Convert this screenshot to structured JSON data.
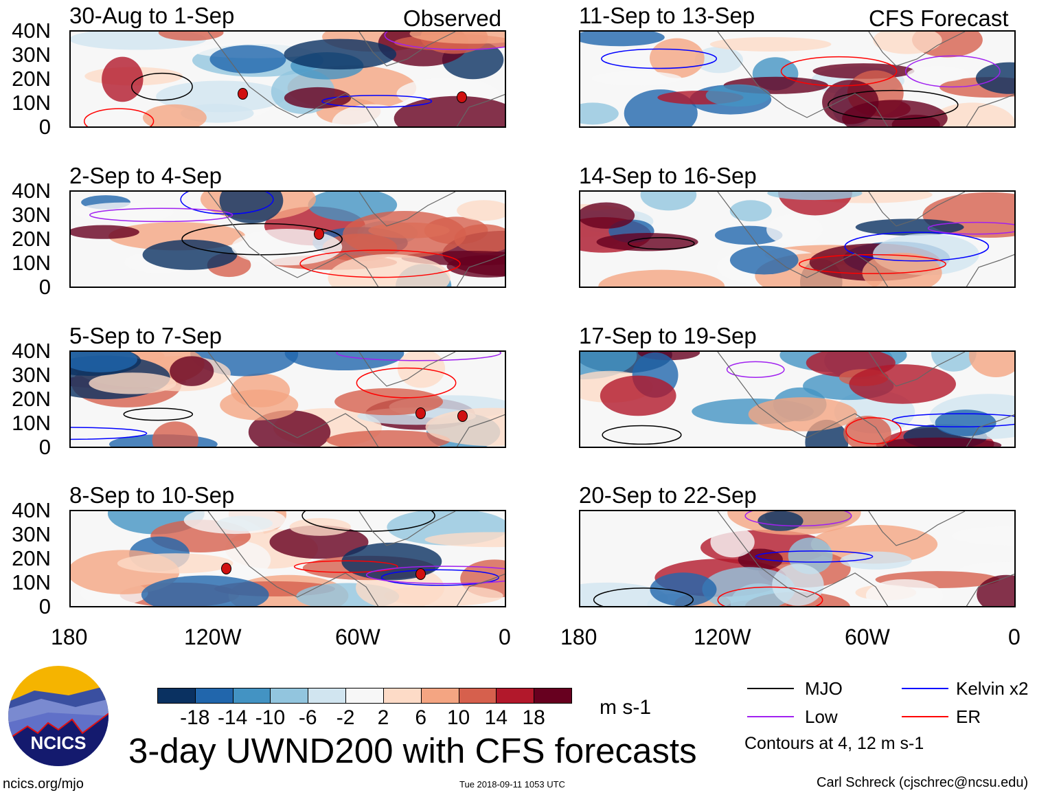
{
  "figure": {
    "title": "3-day UWND200 with CFS forecasts",
    "left_header": "Observed",
    "right_header": "CFS Forecast",
    "units": "m s-1",
    "timestamp": "Tue 2018-09-11 1053 UTC",
    "author": "Carl Schreck (cjschrec@ncsu.edu)",
    "url": "ncics.org/mjo",
    "logo_text": "NCICS"
  },
  "panels": {
    "left": [
      "30-Aug to 1-Sep",
      "2-Sep to 4-Sep",
      "5-Sep to 7-Sep",
      "8-Sep to 10-Sep"
    ],
    "right": [
      "11-Sep to 13-Sep",
      "14-Sep to 16-Sep",
      "17-Sep to 19-Sep",
      "20-Sep to 22-Sep"
    ]
  },
  "axes": {
    "lat_labels": [
      "40N",
      "30N",
      "20N",
      "10N",
      "0"
    ],
    "lon_labels": [
      "180",
      "120W",
      "60W",
      "0"
    ]
  },
  "colorbar": {
    "labels": [
      "-18",
      "-14",
      "-10",
      "-6",
      "-2",
      "2",
      "6",
      "10",
      "14",
      "18"
    ],
    "colors": [
      "#0a3161",
      "#2166ac",
      "#4393c3",
      "#92c5de",
      "#d1e5f0",
      "#f7f7f7",
      "#fddbc7",
      "#f4a582",
      "#d6604d",
      "#b2182b",
      "#67001f"
    ]
  },
  "legend": {
    "items": [
      {
        "label": "MJO",
        "color": "#000000"
      },
      {
        "label": "Kelvin x2",
        "color": "#0000ff"
      },
      {
        "label": "Low",
        "color": "#a020f0"
      },
      {
        "label": "ER",
        "color": "#ff0000"
      }
    ],
    "contours_note": "Contours at 4, 12 m s-1"
  }
}
